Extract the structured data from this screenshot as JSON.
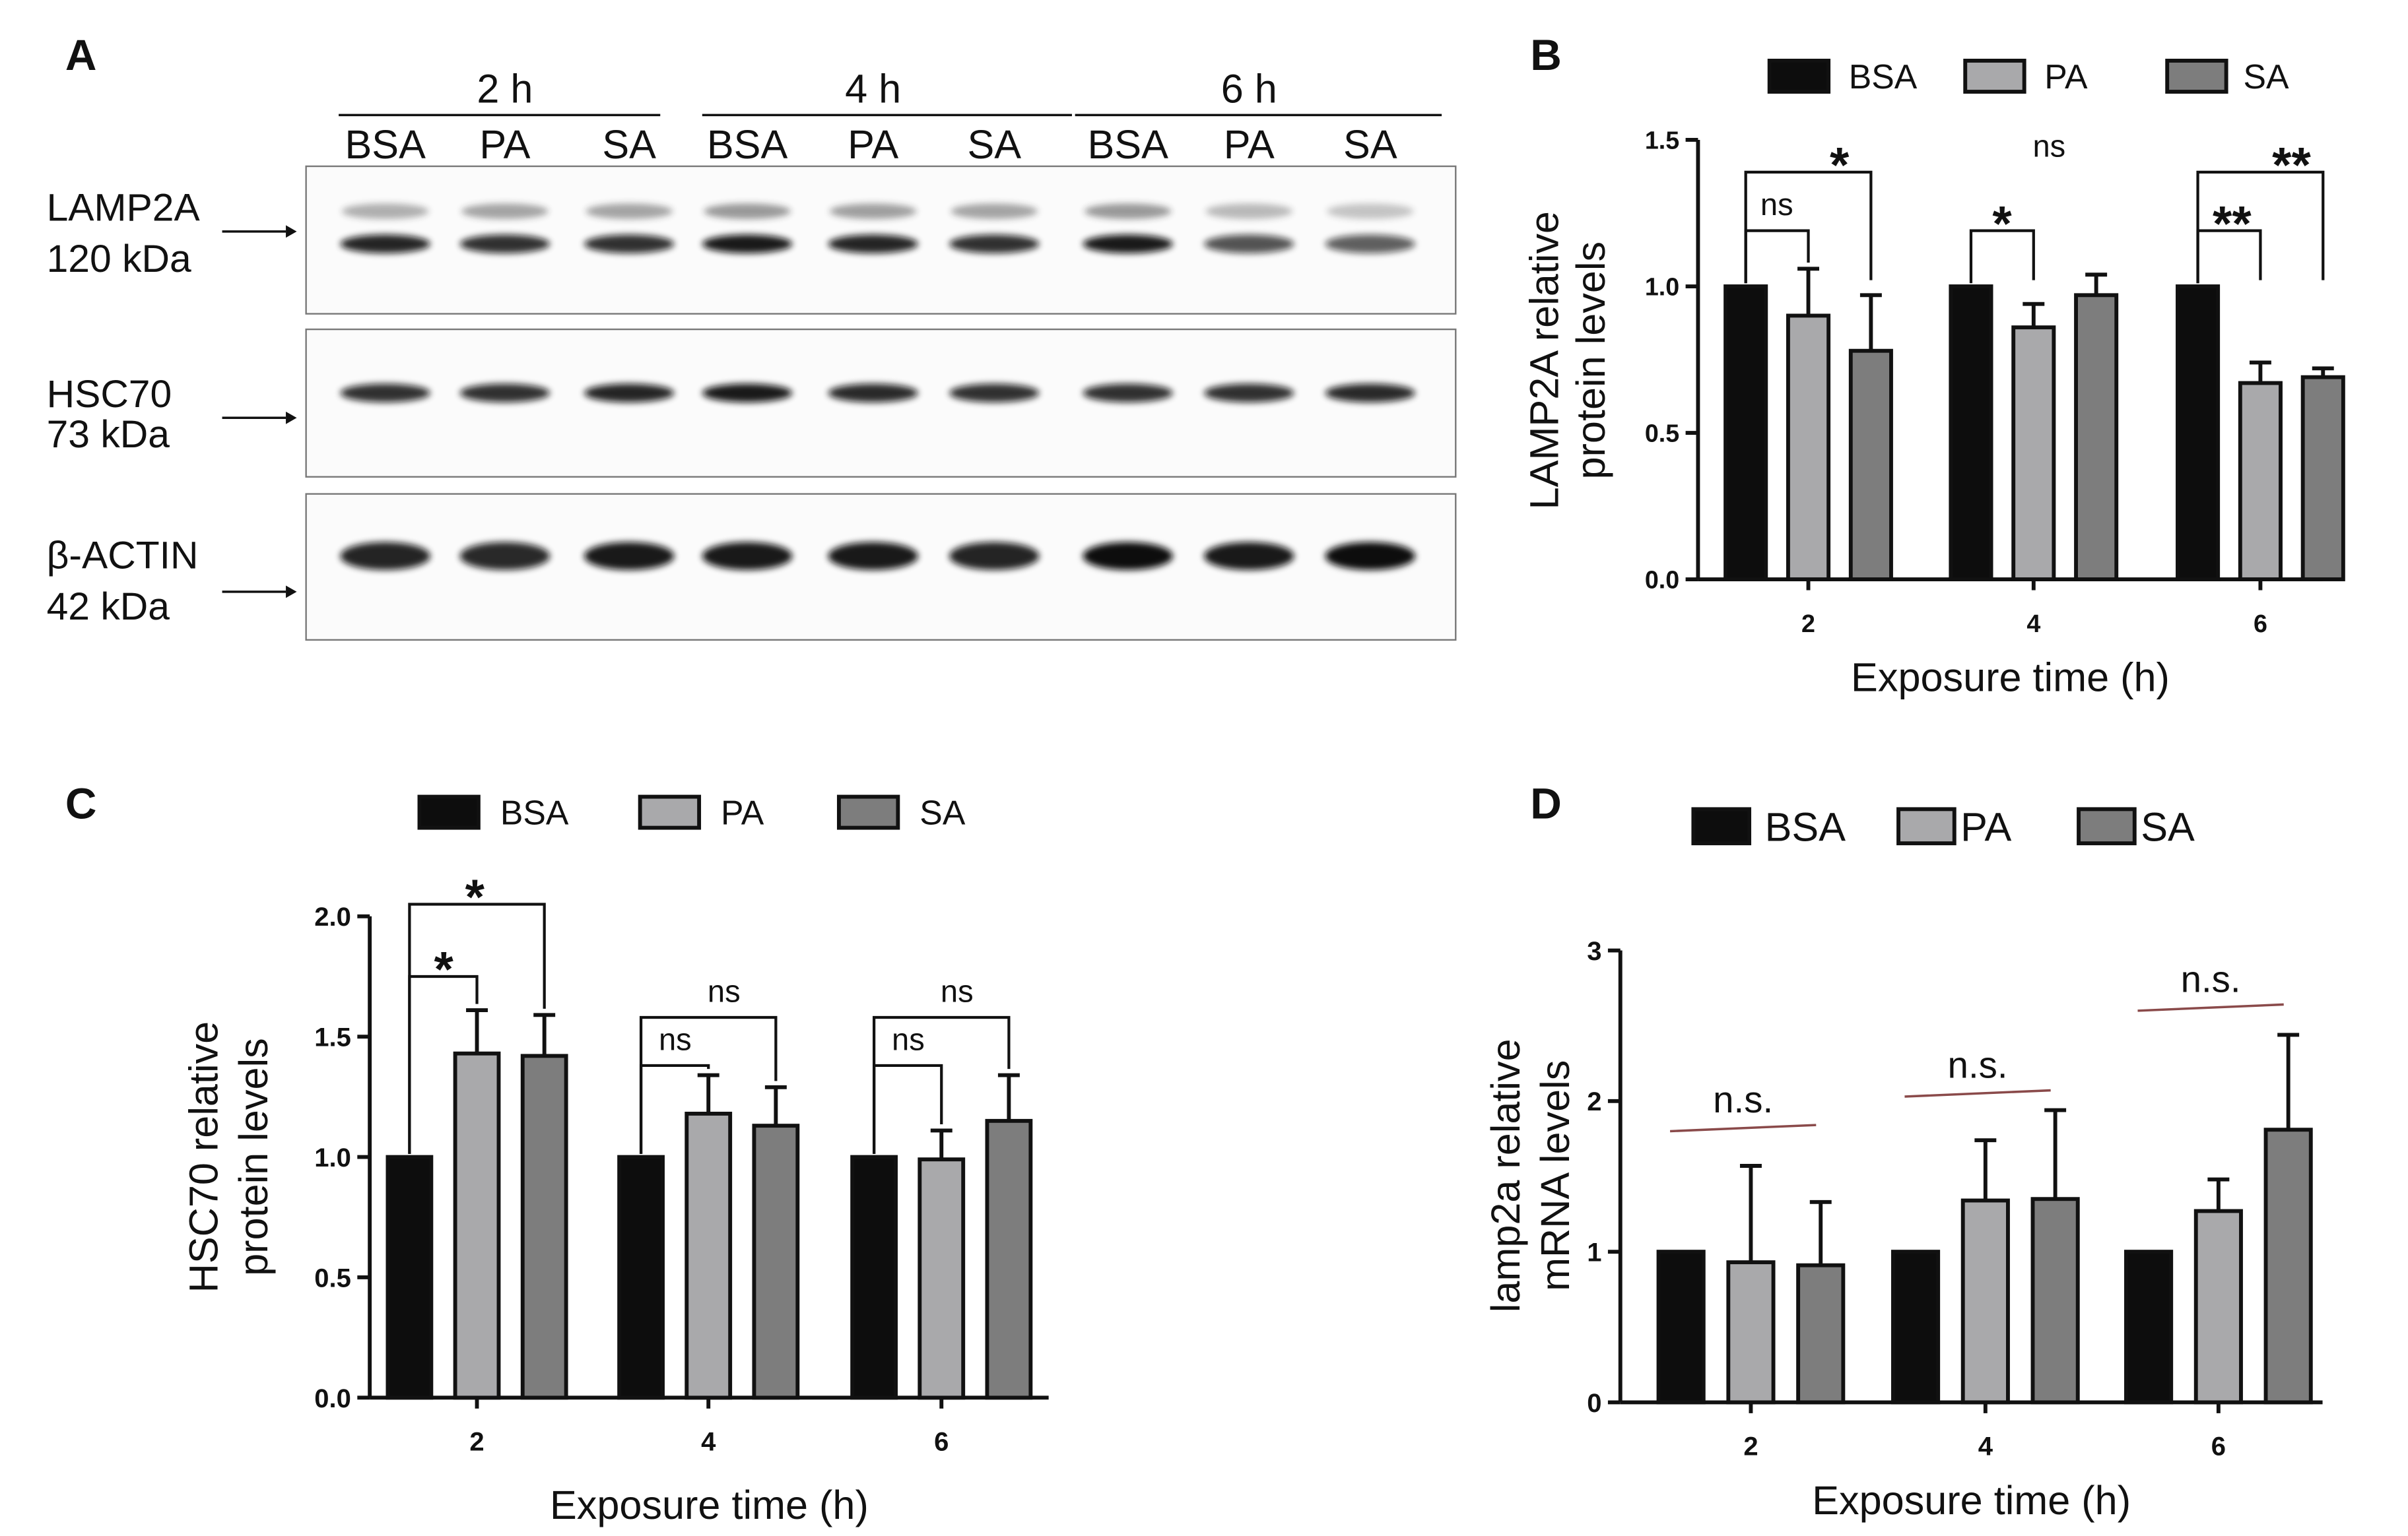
{
  "panel_labels": {
    "a": "A",
    "b": "B",
    "c": "C",
    "d": "D"
  },
  "colors": {
    "BSA": "#0d0d0d",
    "PA": "#a9a9ab",
    "SA": "#7d7d7d",
    "axis": "#111111",
    "bracket": "#111111",
    "ns_line": "#8a4a4a"
  },
  "blot": {
    "timepoints": [
      "2 h",
      "4 h",
      "6 h"
    ],
    "lane_labels": [
      "BSA",
      "PA",
      "SA",
      "BSA",
      "PA",
      "SA",
      "BSA",
      "PA",
      "SA"
    ],
    "rows": [
      {
        "name": "LAMP2A",
        "kda": "120 kDa",
        "upper_band": [
          0.35,
          0.4,
          0.4,
          0.45,
          0.42,
          0.4,
          0.45,
          0.3,
          0.25
        ],
        "lower_band": [
          0.9,
          0.85,
          0.85,
          0.95,
          0.9,
          0.85,
          0.95,
          0.7,
          0.65
        ]
      },
      {
        "name": "HSC70",
        "kda": "73 kDa",
        "band": [
          0.85,
          0.85,
          0.9,
          0.95,
          0.88,
          0.85,
          0.85,
          0.85,
          0.88
        ]
      },
      {
        "name": "β-ACTIN",
        "kda": "42 kDa",
        "band": [
          0.9,
          0.88,
          0.95,
          0.95,
          0.95,
          0.9,
          1.0,
          0.95,
          1.0
        ]
      }
    ]
  },
  "chart_data": [
    {
      "panel": "B",
      "type": "bar",
      "legend": [
        "BSA",
        "PA",
        "SA"
      ],
      "categories": [
        "2",
        "4",
        "6"
      ],
      "xlabel": "Exposure time (h)",
      "ylabel_lines": [
        "LAMP2A relative",
        "protein levels"
      ],
      "ylim": [
        0,
        1.5
      ],
      "yticks": [
        0.0,
        0.5,
        1.0,
        1.5
      ],
      "ytick_labels": [
        "0.0",
        "0.5",
        "1.0",
        "1.5"
      ],
      "series": [
        {
          "name": "BSA",
          "values": [
            1.0,
            1.0,
            1.0
          ],
          "errors": [
            0,
            0,
            0
          ]
        },
        {
          "name": "PA",
          "values": [
            0.9,
            0.86,
            0.67
          ],
          "errors": [
            0.16,
            0.08,
            0.07
          ]
        },
        {
          "name": "SA",
          "values": [
            0.78,
            0.97,
            0.69
          ],
          "errors": [
            0.19,
            0.07,
            0.03
          ]
        }
      ],
      "significance": [
        {
          "group": 0,
          "to": 1,
          "label": "ns",
          "y": 1.19
        },
        {
          "group": 0,
          "to": 2,
          "label": "*",
          "y": 1.39
        },
        {
          "group": 1,
          "to": 1,
          "label": "*",
          "y": 1.19
        },
        {
          "group": 1,
          "to": 2,
          "label": "ns",
          "y": 1.39,
          "label_only": true
        },
        {
          "group": 2,
          "to": 1,
          "label": "**",
          "y": 1.19
        },
        {
          "group": 2,
          "to": 2,
          "label": "**",
          "y": 1.39
        }
      ]
    },
    {
      "panel": "C",
      "type": "bar",
      "legend": [
        "BSA",
        "PA",
        "SA"
      ],
      "categories": [
        "2",
        "4",
        "6"
      ],
      "xlabel": "Exposure time (h)",
      "ylabel_lines": [
        "HSC70 relative",
        "protein levels"
      ],
      "ylim": [
        0,
        2.0
      ],
      "yticks": [
        0.0,
        0.5,
        1.0,
        1.5,
        2.0
      ],
      "ytick_labels": [
        "0.0",
        "0.5",
        "1.0",
        "1.5",
        "2.0"
      ],
      "series": [
        {
          "name": "BSA",
          "values": [
            1.0,
            1.0,
            1.0
          ],
          "errors": [
            0,
            0,
            0
          ]
        },
        {
          "name": "PA",
          "values": [
            1.43,
            1.18,
            0.99
          ],
          "errors": [
            0.18,
            0.16,
            0.12
          ]
        },
        {
          "name": "SA",
          "values": [
            1.42,
            1.13,
            1.15
          ],
          "errors": [
            0.17,
            0.16,
            0.19
          ]
        }
      ],
      "significance": [
        {
          "group": 0,
          "to": 1,
          "label": "*",
          "y": 1.75
        },
        {
          "group": 0,
          "to": 2,
          "label": "*",
          "y": 2.05
        },
        {
          "group": 1,
          "to": 1,
          "label": "ns",
          "y": 1.38
        },
        {
          "group": 1,
          "to": 2,
          "label": "ns",
          "y": 1.58
        },
        {
          "group": 2,
          "to": 1,
          "label": "ns",
          "y": 1.38
        },
        {
          "group": 2,
          "to": 2,
          "label": "ns",
          "y": 1.58
        }
      ]
    },
    {
      "panel": "D",
      "type": "bar",
      "legend": [
        "BSA",
        "PA",
        "SA"
      ],
      "categories": [
        "2",
        "4",
        "6"
      ],
      "xlabel": "Exposure time (h)",
      "ylabel_lines": [
        "lamp2a relative",
        "mRNA levels"
      ],
      "ylim": [
        0,
        3
      ],
      "yticks": [
        0,
        1,
        2,
        3
      ],
      "ytick_labels": [
        "0",
        "1",
        "2",
        "3"
      ],
      "series": [
        {
          "name": "BSA",
          "values": [
            1.0,
            1.0,
            1.0
          ],
          "errors": [
            0,
            0,
            0
          ]
        },
        {
          "name": "PA",
          "values": [
            0.93,
            1.34,
            1.27
          ],
          "errors": [
            0.64,
            0.4,
            0.21
          ]
        },
        {
          "name": "SA",
          "values": [
            0.91,
            1.35,
            1.81
          ],
          "errors": [
            0.42,
            0.59,
            0.63
          ]
        }
      ],
      "significance": [
        {
          "group": 0,
          "label": "n.s.",
          "y": 1.8,
          "style": "line"
        },
        {
          "group": 1,
          "label": "n.s.",
          "y": 2.03,
          "style": "line"
        },
        {
          "group": 2,
          "label": "n.s.",
          "y": 2.6,
          "style": "line"
        }
      ]
    }
  ]
}
